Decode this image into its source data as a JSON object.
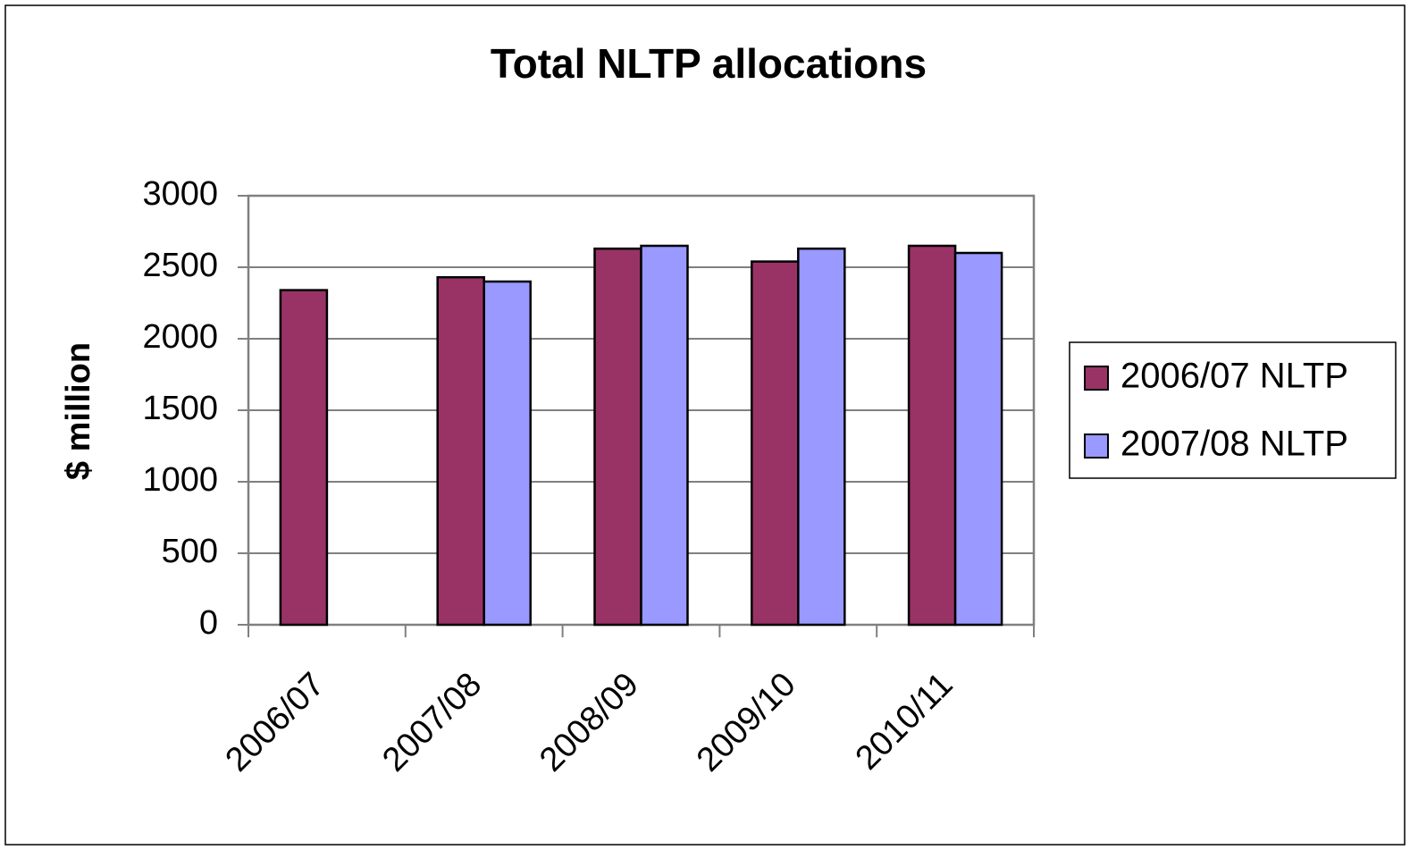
{
  "chart_data": {
    "type": "bar",
    "title": "Total NLTP allocations",
    "y_label": "$ million",
    "categories": [
      "2006/07",
      "2007/08",
      "2008/09",
      "2009/10",
      "2010/11"
    ],
    "series": [
      {
        "name": "2006/07 NLTP",
        "color": "#993366",
        "values": [
          2340,
          2430,
          2630,
          2540,
          2650
        ]
      },
      {
        "name": "2007/08 NLTP",
        "color": "#9999ff",
        "values": [
          null,
          2400,
          2650,
          2630,
          2600
        ]
      }
    ],
    "ylim": [
      0,
      3000
    ],
    "yticks": [
      0,
      500,
      1000,
      1500,
      2000,
      2500,
      3000
    ],
    "grid": true,
    "legend": "right"
  }
}
